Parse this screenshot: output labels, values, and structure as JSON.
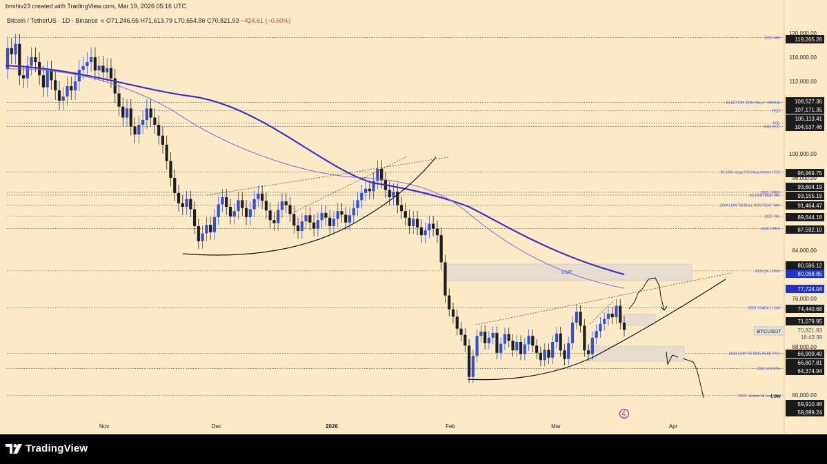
{
  "header": {
    "creator_line": "bnshiv23 created with TradingView.com, Mar 19, 2026 05:16 UTC",
    "symbol": "Bitcoin / TetherUS · 1D · Binance",
    "open": "O71,246.55",
    "high": "H71,613.79",
    "low": "L70,654.86",
    "close": "C70,821.93",
    "change": "−424.61 (−0.60%)"
  },
  "footer": {
    "brand": "TradingView"
  },
  "colors": {
    "background": "#fdebc8",
    "candle_up": "#2f50d8",
    "candle_down": "#1f1f1f",
    "ma_thick": "#3c32c8",
    "ma_thin": "#7a6ae0",
    "badge_dark": "#1b1b1b",
    "badge_blue": "#1f33c8"
  },
  "price_scale": {
    "ticks": [
      "120,000.00",
      "116,000.00",
      "112,000.00",
      "100,000.00",
      "96,000.00",
      "84,000.00",
      "76,000.00",
      "68,000.00",
      "60,000.00"
    ],
    "badges": [
      {
        "text": "119,265.26",
        "style": "dark"
      },
      {
        "text": "108,527.36",
        "style": "dark"
      },
      {
        "text": "107,171.35",
        "style": "dark"
      },
      {
        "text": "105,113.41",
        "style": "dark"
      },
      {
        "text": "104,537.46",
        "style": "dark"
      },
      {
        "text": "96,969.75",
        "style": "dark"
      },
      {
        "text": "93,604.19",
        "style": "dark"
      },
      {
        "text": "93,155.19",
        "style": "dark"
      },
      {
        "text": "91,464.47",
        "style": "dark"
      },
      {
        "text": "89,644.18",
        "style": "dark"
      },
      {
        "text": "87,592.10",
        "style": "dark"
      },
      {
        "text": "80,586.12",
        "style": "dark"
      },
      {
        "text": "80,098.85",
        "style": "blue"
      },
      {
        "text": "77,724.04",
        "style": "blue"
      },
      {
        "text": "74,440.68",
        "style": "dark"
      },
      {
        "text": "71,079.95",
        "style": "dark"
      },
      {
        "text": "70,821.93",
        "style": "current"
      },
      {
        "text": "18:43:39",
        "style": "current"
      },
      {
        "text": "66,909.40",
        "style": "dark"
      },
      {
        "text": "66,807.81",
        "style": "dark"
      },
      {
        "text": "64,374.94",
        "style": "dark"
      },
      {
        "text": "59,910.46",
        "style": "dark"
      },
      {
        "text": "58,699.24",
        "style": "dark"
      }
    ],
    "symbol_tag": "BTCUSDT",
    "low_tag": "Low"
  },
  "time_axis": [
    "Nov",
    "Dec",
    "2026",
    "Feb",
    "Mar",
    "Apr"
  ],
  "level_labels": [
    "2025 VAH",
    "ELECTION 2025 RALLY~RANGE",
    "PQD",
    "POL",
    "2025 POC",
    "90-100k range POC/Aug bottom POC",
    "2025 OPEN",
    "90-100k range VAL",
    "2024 LOW TO BULL RUN PEAK VAH",
    "2025 VAL",
    "2026 OPEN",
    "2025 Q4 LOWS",
    "2025 YEARLY LOW",
    "2024 LOW TO 2025 PEAK POC",
    "2021 1ST ATH",
    "2023 - bottom till now VAH"
  ],
  "annotations": {
    "zone_label": "CME"
  }
}
